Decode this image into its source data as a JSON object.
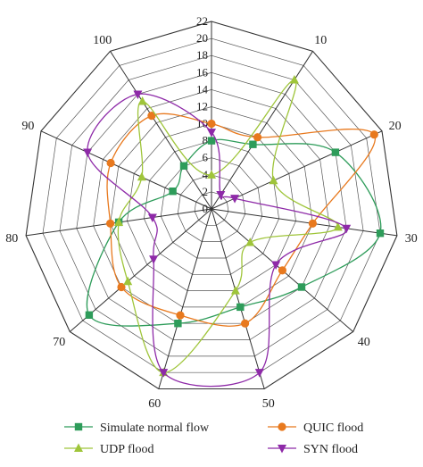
{
  "chart_data": {
    "type": "radar",
    "categories": [
      "0",
      "10",
      "20",
      "30",
      "40",
      "50",
      "60",
      "70",
      "80",
      "90",
      "100"
    ],
    "rmin": 0,
    "rmax": 22,
    "ticks": [
      "0",
      "2",
      "4",
      "6",
      "8",
      "10",
      "12",
      "14",
      "16",
      "18",
      "20",
      "22"
    ],
    "grid": true,
    "legend_position": "bottom",
    "series": [
      {
        "name": "Simulate normal flow",
        "color": "#2e9c5a",
        "marker": "square",
        "values": [
          8,
          9,
          16,
          20,
          14,
          12,
          14,
          19,
          11,
          5,
          6
        ]
      },
      {
        "name": "QUIC flood",
        "color": "#e8791e",
        "marker": "circle",
        "values": [
          10,
          10,
          21,
          12,
          11,
          14,
          13,
          14,
          12,
          13,
          13
        ]
      },
      {
        "name": "UDP flood",
        "color": "#9fc53a",
        "marker": "triangle-up",
        "values": [
          4,
          18,
          8,
          15,
          6,
          10,
          20,
          13,
          11,
          9,
          15
        ]
      },
      {
        "name": "SYN flood",
        "color": "#8e2aa8",
        "marker": "triangle-down",
        "values": [
          9,
          2,
          3,
          16,
          10,
          20,
          20,
          9,
          7,
          16,
          16
        ]
      }
    ]
  }
}
